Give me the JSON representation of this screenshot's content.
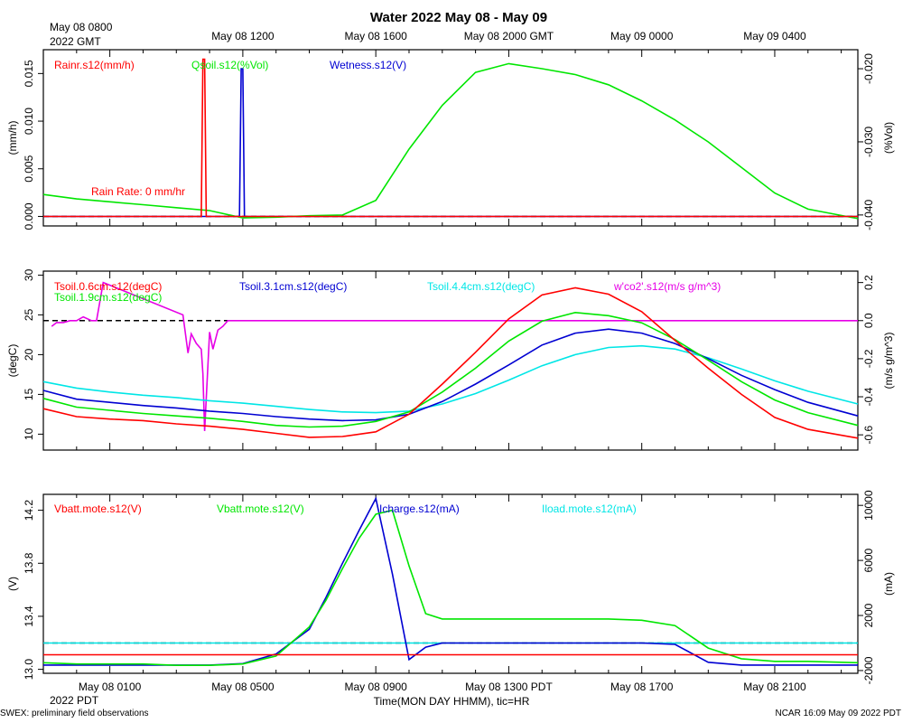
{
  "title": "Water 2022 May 08 - May 09",
  "top_axis": {
    "start_label_line1": "May 08 0800",
    "start_label_line2": "2022 GMT",
    "labels": [
      "May 08 1200",
      "May 08 1600",
      "May 08 2000 GMT",
      "May 09 0000",
      "May 09 0400"
    ]
  },
  "bottom_axis": {
    "labels": [
      "May 08 0100",
      "May 08 0500",
      "May 08 0900",
      "May 08 1300 PDT",
      "May 08 1700",
      "May 08 2100"
    ],
    "year_label": "2022 PDT",
    "title": "Time(MON DAY HHMM), tic=HR"
  },
  "footer": {
    "left": "SWEX: preliminary field observations",
    "right": "NCAR 16:09 May 09 2022 PDT"
  },
  "colors": {
    "red": "#ff0000",
    "green": "#00e600",
    "blue": "#0000d2",
    "cyan": "#00e6e6",
    "magenta": "#e600e6"
  },
  "chart_data": [
    {
      "type": "line",
      "panel": "water",
      "time_unit": "hours since May 08 00:00 PDT",
      "xlim": [
        -1,
        23.5
      ],
      "left_axis": {
        "label": "(mm/h)",
        "ylim": [
          -0.001,
          0.0175
        ],
        "ticks": [
          0.0,
          0.005,
          0.01,
          0.015
        ],
        "tick_labels": [
          "0.000",
          "0.005",
          "0.010",
          "0.015"
        ]
      },
      "right_axis": {
        "label": "(%Vol)",
        "ylim": [
          -0.0415,
          -0.0174
        ],
        "ticks": [
          -0.04,
          -0.03,
          -0.02
        ],
        "tick_labels": [
          "-0.040",
          "-0.030",
          "-0.020"
        ]
      },
      "zero_line_left": 0,
      "annotation": "Rain Rate: 0 mm/hr",
      "series": [
        {
          "name": "Rainr.s12(mm/h)",
          "color": "red",
          "axis": "left",
          "x": [
            -1,
            3.75,
            3.8,
            3.85,
            3.9,
            23.5
          ],
          "y": [
            0,
            0,
            0.0165,
            0.0165,
            0,
            0
          ]
        },
        {
          "name": "Qsoil.s12(%Vol)",
          "color": "green",
          "axis": "right",
          "x": [
            -1,
            0,
            1,
            2,
            3,
            4,
            5,
            6,
            7,
            8,
            9,
            10,
            11,
            12,
            13,
            14,
            15,
            16,
            17,
            18,
            19,
            20,
            21,
            22,
            23.5
          ],
          "y": [
            -0.0372,
            -0.0378,
            -0.0382,
            -0.0386,
            -0.039,
            -0.0394,
            -0.0404,
            -0.0403,
            -0.0401,
            -0.04,
            -0.038,
            -0.031,
            -0.025,
            -0.0205,
            -0.0193,
            -0.02,
            -0.0208,
            -0.0222,
            -0.0244,
            -0.027,
            -0.03,
            -0.0335,
            -0.037,
            -0.0392,
            -0.0405
          ]
        },
        {
          "name": "Wetness.s12(V)",
          "color": "blue",
          "axis": "left",
          "x": [
            -1,
            4.9,
            4.95,
            5.0,
            5.05,
            23.5
          ],
          "y": [
            0,
            0,
            0.0155,
            0.0155,
            0,
            0
          ]
        }
      ]
    },
    {
      "type": "line",
      "panel": "soil-temperature",
      "xlim": [
        -1,
        23.5
      ],
      "left_axis": {
        "label": "(degC)",
        "ylim": [
          8,
          30.5
        ],
        "ticks": [
          10,
          15,
          20,
          25,
          30
        ],
        "tick_labels": [
          "10",
          "15",
          "20",
          "25",
          "30"
        ]
      },
      "right_axis": {
        "label": "(m/s g/m^3)",
        "ylim": [
          -0.68,
          0.26
        ],
        "ticks": [
          -0.6,
          -0.4,
          -0.2,
          0.0,
          0.2
        ],
        "tick_labels": [
          "-0.6",
          "-0.4",
          "-0.2",
          "0.0",
          "0.2"
        ]
      },
      "zero_line_right": 0,
      "series": [
        {
          "name": "Tsoil.0.6cm.s12(degC)",
          "color": "red",
          "axis": "left",
          "x": [
            -1,
            0,
            1,
            2,
            3,
            4,
            5,
            6,
            7,
            8,
            9,
            10,
            11,
            12,
            13,
            14,
            15,
            16,
            17,
            18,
            19,
            20,
            21,
            22,
            23.5
          ],
          "y": [
            13.2,
            12.2,
            11.9,
            11.7,
            11.3,
            11.0,
            10.6,
            10.1,
            9.6,
            9.7,
            10.3,
            12.5,
            16.3,
            20.3,
            24.5,
            27.5,
            28.4,
            27.6,
            25.4,
            21.8,
            18.3,
            15.0,
            12.1,
            10.6,
            9.5
          ]
        },
        {
          "name": "Tsoil.1.9cm.s12(degC)",
          "color": "green",
          "axis": "left",
          "x": [
            -1,
            0,
            1,
            2,
            3,
            4,
            5,
            6,
            7,
            8,
            9,
            10,
            11,
            12,
            13,
            14,
            15,
            16,
            17,
            18,
            19,
            20,
            21,
            22,
            23.5
          ],
          "y": [
            14.5,
            13.4,
            13.0,
            12.6,
            12.3,
            12.0,
            11.6,
            11.1,
            10.9,
            11.0,
            11.6,
            12.8,
            15.3,
            18.3,
            21.7,
            24.2,
            25.3,
            24.9,
            24.0,
            21.9,
            19.3,
            16.6,
            14.3,
            12.7,
            11.1
          ]
        },
        {
          "name": "Tsoil.3.1cm.s12(degC)",
          "color": "blue",
          "axis": "left",
          "x": [
            -1,
            0,
            1,
            2,
            3,
            4,
            5,
            6,
            7,
            8,
            9,
            10,
            11,
            12,
            13,
            14,
            15,
            16,
            17,
            18,
            19,
            20,
            21,
            22,
            23.5
          ],
          "y": [
            15.5,
            14.4,
            14.0,
            13.6,
            13.3,
            12.9,
            12.6,
            12.2,
            11.9,
            11.7,
            11.8,
            12.5,
            14.1,
            16.3,
            18.7,
            21.2,
            22.7,
            23.2,
            22.7,
            21.4,
            19.5,
            17.4,
            15.6,
            14.0,
            12.3
          ]
        },
        {
          "name": "Tsoil.4.4cm.s12(degC)",
          "color": "cyan",
          "axis": "left",
          "x": [
            -1,
            0,
            1,
            2,
            3,
            4,
            5,
            6,
            7,
            8,
            9,
            10,
            11,
            12,
            13,
            14,
            15,
            16,
            17,
            18,
            19,
            20,
            21,
            22,
            23.5
          ],
          "y": [
            16.6,
            15.8,
            15.3,
            14.9,
            14.6,
            14.2,
            13.9,
            13.5,
            13.1,
            12.8,
            12.7,
            12.9,
            13.8,
            15.1,
            16.8,
            18.6,
            20.0,
            20.9,
            21.1,
            20.7,
            19.6,
            18.2,
            16.7,
            15.4,
            13.8
          ]
        },
        {
          "name": "w'co2'.s12(m/s g/m^3)",
          "color": "magenta",
          "axis": "right",
          "x": [
            -0.75,
            -0.6,
            -0.4,
            -0.2,
            0.0,
            0.2,
            0.45,
            0.6,
            0.8,
            3.2,
            3.35,
            3.45,
            3.6,
            3.75,
            3.8,
            3.85,
            4.0,
            4.1,
            4.25,
            4.4,
            4.55,
            4.7,
            23.5
          ],
          "y": [
            -0.03,
            -0.01,
            -0.01,
            0.0,
            0.0,
            0.02,
            0.0,
            0.0,
            0.2,
            0.03,
            -0.17,
            -0.07,
            -0.12,
            -0.15,
            -0.28,
            -0.58,
            -0.06,
            -0.15,
            -0.05,
            -0.03,
            0.0,
            0.0,
            0.0
          ]
        }
      ]
    },
    {
      "type": "line",
      "panel": "power",
      "xlim": [
        -1,
        23.5
      ],
      "left_axis": {
        "label": "(V)",
        "ylim": [
          12.97,
          14.32
        ],
        "ticks": [
          13.0,
          13.4,
          13.8,
          14.2
        ],
        "tick_labels": [
          "13.0",
          "13.4",
          "13.8",
          "14.2"
        ]
      },
      "right_axis": {
        "label": "(mA)",
        "ylim": [
          -2200,
          10800
        ],
        "ticks": [
          -2000,
          2000,
          6000,
          10000
        ],
        "tick_labels": [
          "-2000",
          "2000",
          "6000",
          "10000"
        ]
      },
      "zero_line_right": 0,
      "series": [
        {
          "name": "Vbatt.mote.s12(V)",
          "color": "red",
          "axis": "left",
          "x": [
            -1,
            23.5
          ],
          "y": [
            13.11,
            13.11
          ]
        },
        {
          "name": "Vbatt.mote.s12(V)",
          "color": "green",
          "axis": "left",
          "x": [
            -1,
            0,
            1,
            2,
            3,
            4,
            5,
            6,
            7,
            7.5,
            8,
            8.5,
            9,
            9.5,
            10,
            10.5,
            11,
            12,
            13,
            14,
            15,
            16,
            17,
            18,
            19,
            20,
            21,
            22,
            23.5
          ],
          "y": [
            13.05,
            13.04,
            13.04,
            13.04,
            13.03,
            13.03,
            13.04,
            13.1,
            13.32,
            13.52,
            13.76,
            13.99,
            14.17,
            14.2,
            13.78,
            13.42,
            13.38,
            13.38,
            13.38,
            13.38,
            13.38,
            13.38,
            13.37,
            13.33,
            13.16,
            13.08,
            13.06,
            13.06,
            13.05
          ]
        },
        {
          "name": "Icharge.s12(mA)",
          "color": "blue",
          "axis": "right",
          "x": [
            -1,
            0,
            1,
            2,
            3,
            4,
            5,
            6,
            7,
            7.5,
            8,
            8.5,
            9,
            9.5,
            10,
            10.5,
            11,
            12,
            13,
            14,
            15,
            16,
            17,
            18,
            19,
            20,
            21,
            22,
            23.5
          ],
          "y": [
            -1600,
            -1600,
            -1600,
            -1600,
            -1600,
            -1600,
            -1500,
            -800,
            1000,
            3300,
            5800,
            8200,
            10500,
            5000,
            -1200,
            -300,
            0,
            0,
            0,
            0,
            0,
            0,
            0,
            -100,
            -1400,
            -1600,
            -1600,
            -1600,
            -1600
          ]
        },
        {
          "name": "Iload.mote.s12(mA)",
          "color": "cyan",
          "axis": "right",
          "x": [
            -1,
            23.5
          ],
          "y": [
            0,
            0
          ]
        }
      ]
    }
  ]
}
